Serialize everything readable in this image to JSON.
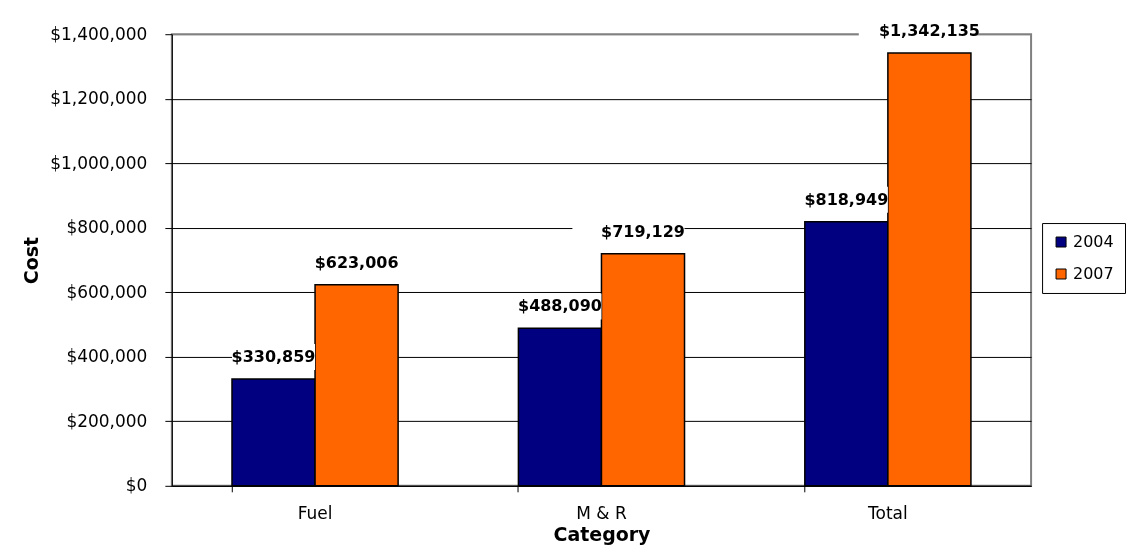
{
  "chart_data": {
    "type": "bar",
    "xlabel": "Category",
    "ylabel": "Cost",
    "categories": [
      "Fuel",
      "M & R",
      "Total"
    ],
    "series": [
      {
        "name": "2004",
        "color": "#000080",
        "values": [
          330859,
          488090,
          818949
        ],
        "value_labels": [
          "$330,859",
          "$488,090",
          "$818,949"
        ]
      },
      {
        "name": "2007",
        "color": "#ff6600",
        "values": [
          623006,
          719129,
          1342135
        ],
        "value_labels": [
          "$623,006",
          "$719,129",
          "$1,342,135"
        ]
      }
    ],
    "ylim": [
      0,
      1400000
    ],
    "yticks": [
      {
        "value": 0,
        "label": "$0"
      },
      {
        "value": 200000,
        "label": "$200,000"
      },
      {
        "value": 400000,
        "label": "$400,000"
      },
      {
        "value": 600000,
        "label": "$600,000"
      },
      {
        "value": 800000,
        "label": "$800,000"
      },
      {
        "value": 1000000,
        "label": "$1,000,000"
      },
      {
        "value": 1200000,
        "label": "$1,200,000"
      },
      {
        "value": 1400000,
        "label": "$1,400,000"
      }
    ],
    "grid": "y",
    "legend": "right"
  }
}
